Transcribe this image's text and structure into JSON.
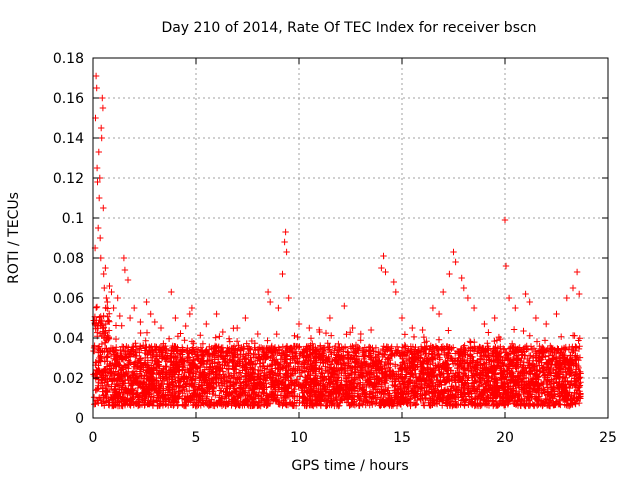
{
  "chart_data": {
    "type": "scatter",
    "title": "Day 210 of 2014, Rate Of TEC Index for receiver bscn",
    "xlabel": "GPS time / hours",
    "ylabel": "ROTI / TECUs",
    "xlim": [
      0,
      25
    ],
    "ylim": [
      0,
      0.18
    ],
    "xticks": [
      0,
      5,
      10,
      15,
      20,
      25
    ],
    "xtick_labels": [
      "0",
      "5",
      "10",
      "15",
      "20",
      "25"
    ],
    "yticks": [
      0,
      0.02,
      0.04,
      0.06,
      0.08,
      0.1,
      0.12,
      0.14,
      0.16,
      0.18
    ],
    "ytick_labels": [
      "0",
      "0.02",
      "0.04",
      "0.06",
      "0.08",
      "0.1",
      "0.12",
      "0.14",
      "0.16",
      "0.18"
    ],
    "grid": true,
    "marker": "+",
    "color": "#ff0000",
    "series": [
      {
        "name": "ROTI",
        "points": [
          [
            0.1,
            0.085
          ],
          [
            0.12,
            0.15
          ],
          [
            0.15,
            0.171
          ],
          [
            0.18,
            0.165
          ],
          [
            0.2,
            0.125
          ],
          [
            0.22,
            0.118
          ],
          [
            0.25,
            0.095
          ],
          [
            0.28,
            0.133
          ],
          [
            0.3,
            0.11
          ],
          [
            0.33,
            0.12
          ],
          [
            0.35,
            0.09
          ],
          [
            0.38,
            0.08
          ],
          [
            0.4,
            0.145
          ],
          [
            0.42,
            0.14
          ],
          [
            0.45,
            0.16
          ],
          [
            0.48,
            0.155
          ],
          [
            0.5,
            0.105
          ],
          [
            0.52,
            0.072
          ],
          [
            0.55,
            0.065
          ],
          [
            0.6,
            0.075
          ],
          [
            0.65,
            0.06
          ],
          [
            0.7,
            0.058
          ],
          [
            0.8,
            0.066
          ],
          [
            0.9,
            0.063
          ],
          [
            1.0,
            0.055
          ],
          [
            1.2,
            0.06
          ],
          [
            1.3,
            0.051
          ],
          [
            1.5,
            0.08
          ],
          [
            1.55,
            0.074
          ],
          [
            1.7,
            0.069
          ],
          [
            1.8,
            0.05
          ],
          [
            2.0,
            0.055
          ],
          [
            2.3,
            0.048
          ],
          [
            2.6,
            0.058
          ],
          [
            2.8,
            0.052
          ],
          [
            3.0,
            0.048
          ],
          [
            3.3,
            0.045
          ],
          [
            3.8,
            0.063
          ],
          [
            4.0,
            0.05
          ],
          [
            4.5,
            0.046
          ],
          [
            4.7,
            0.052
          ],
          [
            4.8,
            0.055
          ],
          [
            5.5,
            0.047
          ],
          [
            6.0,
            0.052
          ],
          [
            6.3,
            0.043
          ],
          [
            7.0,
            0.045
          ],
          [
            7.4,
            0.05
          ],
          [
            8.0,
            0.042
          ],
          [
            8.5,
            0.063
          ],
          [
            8.6,
            0.058
          ],
          [
            9.0,
            0.055
          ],
          [
            9.2,
            0.072
          ],
          [
            9.3,
            0.088
          ],
          [
            9.35,
            0.093
          ],
          [
            9.4,
            0.083
          ],
          [
            9.5,
            0.06
          ],
          [
            10.0,
            0.047
          ],
          [
            10.5,
            0.045
          ],
          [
            11.0,
            0.043
          ],
          [
            11.5,
            0.05
          ],
          [
            12.2,
            0.056
          ],
          [
            12.6,
            0.045
          ],
          [
            13.0,
            0.042
          ],
          [
            13.5,
            0.044
          ],
          [
            14.0,
            0.075
          ],
          [
            14.1,
            0.081
          ],
          [
            14.2,
            0.073
          ],
          [
            14.6,
            0.068
          ],
          [
            14.7,
            0.063
          ],
          [
            15.0,
            0.05
          ],
          [
            15.5,
            0.045
          ],
          [
            16.0,
            0.044
          ],
          [
            16.5,
            0.055
          ],
          [
            16.8,
            0.052
          ],
          [
            17.0,
            0.063
          ],
          [
            17.3,
            0.072
          ],
          [
            17.5,
            0.083
          ],
          [
            17.6,
            0.078
          ],
          [
            17.9,
            0.07
          ],
          [
            18.0,
            0.065
          ],
          [
            18.2,
            0.06
          ],
          [
            18.5,
            0.055
          ],
          [
            19.0,
            0.047
          ],
          [
            19.5,
            0.05
          ],
          [
            20.0,
            0.099
          ],
          [
            20.05,
            0.076
          ],
          [
            20.2,
            0.06
          ],
          [
            20.5,
            0.055
          ],
          [
            21.0,
            0.062
          ],
          [
            21.2,
            0.058
          ],
          [
            21.5,
            0.05
          ],
          [
            22.0,
            0.047
          ],
          [
            22.5,
            0.052
          ],
          [
            23.0,
            0.06
          ],
          [
            23.3,
            0.065
          ],
          [
            23.5,
            0.073
          ],
          [
            23.6,
            0.062
          ]
        ]
      }
    ]
  }
}
